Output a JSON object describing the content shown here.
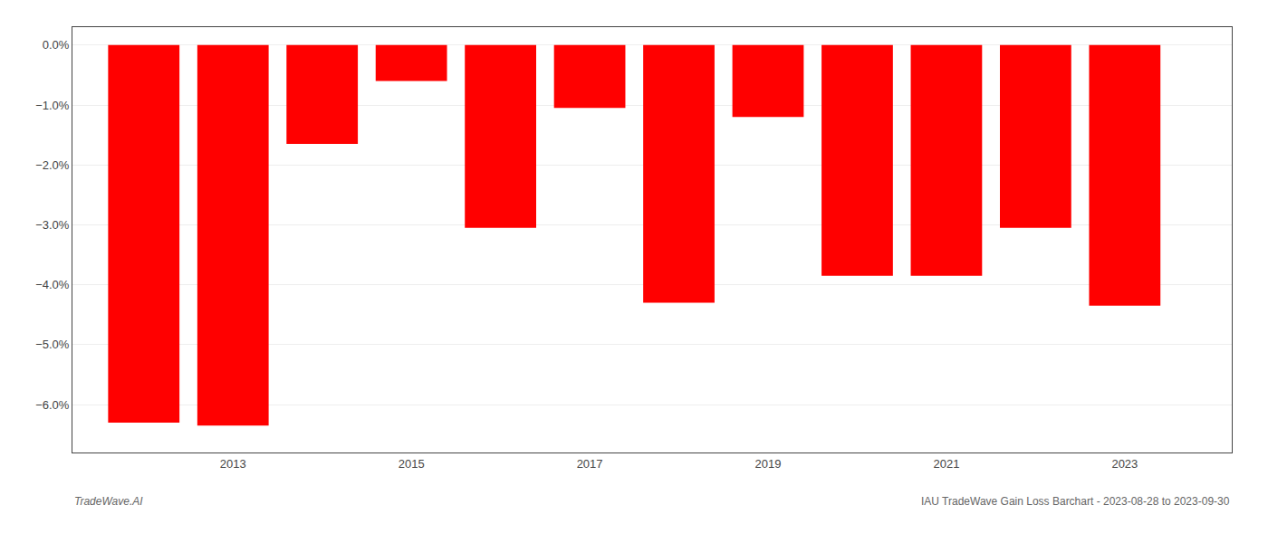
{
  "chart_data": {
    "type": "bar",
    "x": [
      2012,
      2013,
      2014,
      2015,
      2016,
      2017,
      2018,
      2019,
      2020,
      2021,
      2022,
      2023
    ],
    "values": [
      -6.3,
      -6.35,
      -1.65,
      -0.6,
      -3.05,
      -1.05,
      -4.3,
      -1.2,
      -3.85,
      -3.85,
      -3.05,
      -4.35
    ],
    "color": "#ff0000",
    "ylim": [
      -6.8,
      0.3
    ],
    "yticks": [
      {
        "value": 0.0,
        "label": "0.0%"
      },
      {
        "value": -1.0,
        "label": "−1.0%"
      },
      {
        "value": -2.0,
        "label": "−2.0%"
      },
      {
        "value": -3.0,
        "label": "−3.0%"
      },
      {
        "value": -4.0,
        "label": "−4.0%"
      },
      {
        "value": -5.0,
        "label": "−5.0%"
      },
      {
        "value": -6.0,
        "label": "−6.0%"
      }
    ],
    "xlim": [
      2011.2,
      2024.2
    ],
    "xticks": [
      2013,
      2015,
      2017,
      2019,
      2021,
      2023
    ],
    "grid": true,
    "annotations": [
      "TradeWave.AI",
      "IAU TradeWave Gain Loss Barchart - 2023-08-28 to 2023-09-30"
    ]
  }
}
